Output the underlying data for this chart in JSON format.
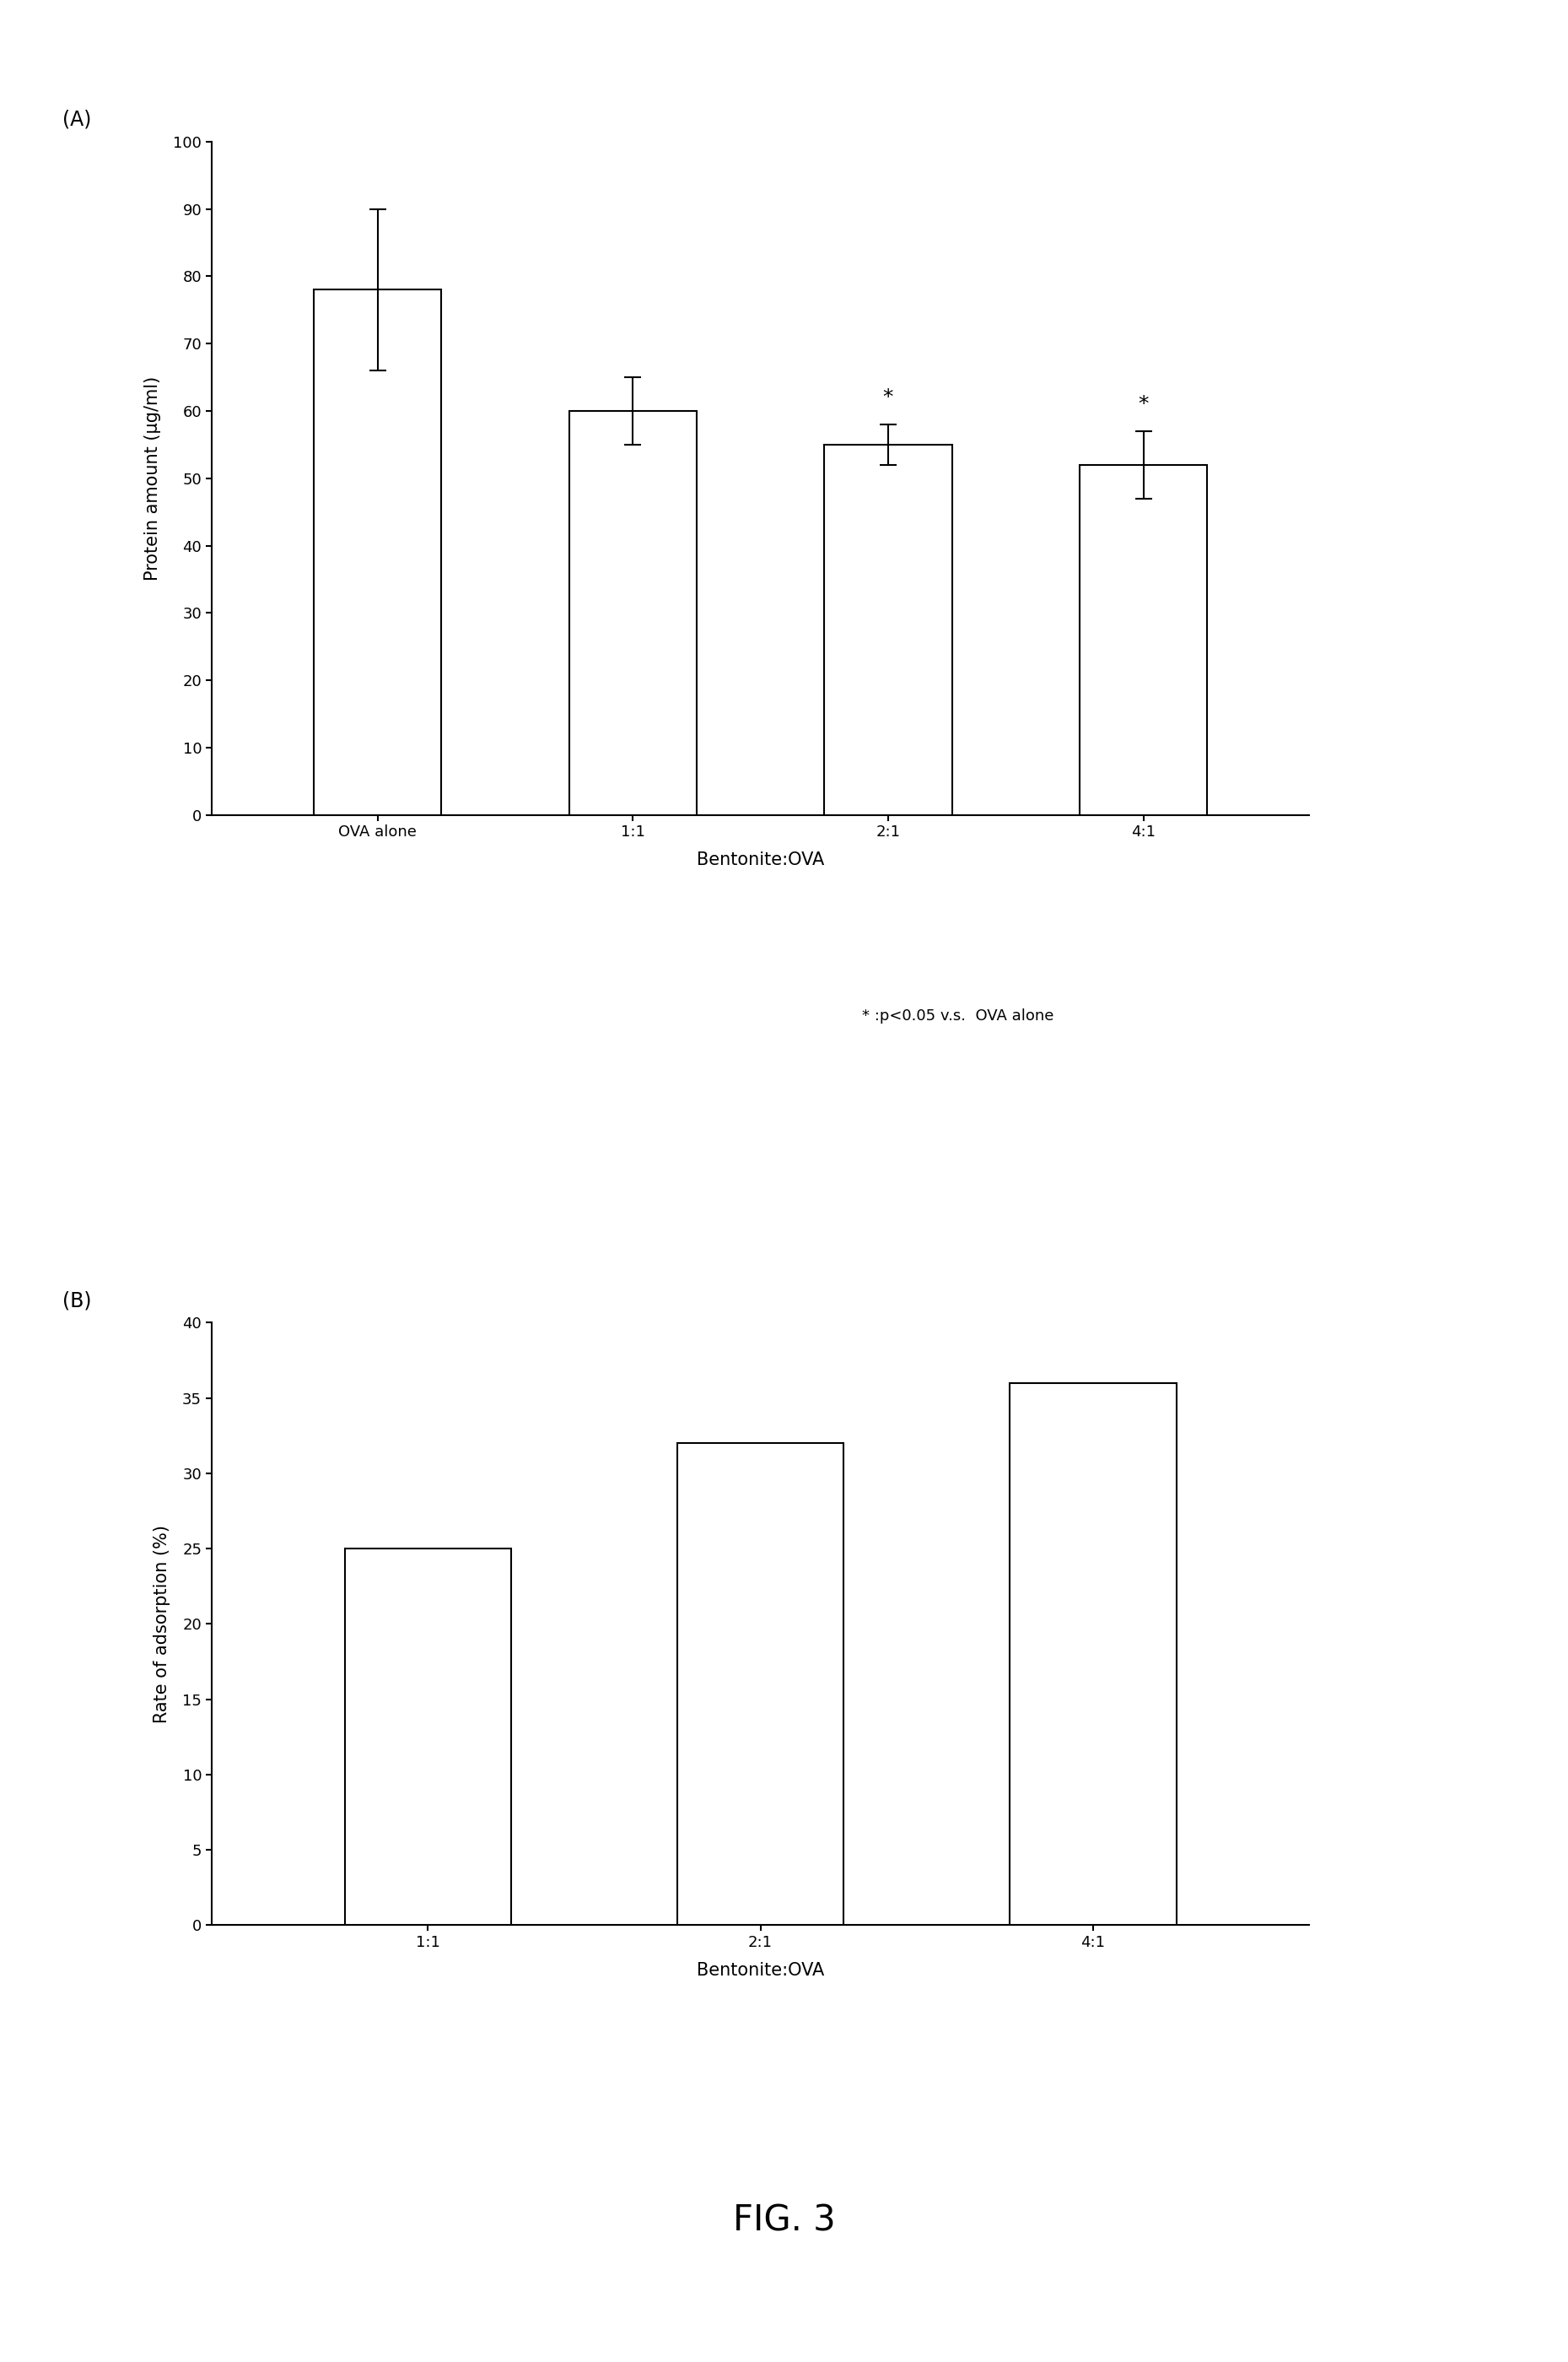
{
  "panel_A": {
    "categories": [
      "OVA alone",
      "1:1",
      "2:1",
      "4:1"
    ],
    "values": [
      78.0,
      60.0,
      55.0,
      52.0
    ],
    "errors": [
      12.0,
      5.0,
      3.0,
      5.0
    ],
    "ylabel": "Protein amount (μg/ml)",
    "xlabel": "Bentonite:OVA",
    "ylim": [
      0,
      100
    ],
    "yticks": [
      0,
      10,
      20,
      30,
      40,
      50,
      60,
      70,
      80,
      90,
      100
    ],
    "significant": [
      false,
      false,
      true,
      true
    ],
    "annotation": "* :p<0.05 v.s.  OVA alone",
    "label": "(A)"
  },
  "panel_B": {
    "categories": [
      "1:1",
      "2:1",
      "4:1"
    ],
    "values": [
      25.0,
      32.0,
      36.0
    ],
    "ylabel": "Rate of adsorption (%)",
    "xlabel": "Bentonite:OVA",
    "ylim": [
      0,
      40
    ],
    "yticks": [
      0,
      5,
      10,
      15,
      20,
      25,
      30,
      35,
      40
    ],
    "label": "(B)"
  },
  "fig_label": "FIG. 3",
  "bar_color": "white",
  "bar_edgecolor": "black",
  "bar_width": 0.5,
  "bar_linewidth": 1.5,
  "axis_linewidth": 1.5,
  "fontsize_label": 15,
  "fontsize_tick": 13,
  "fontsize_panel": 17,
  "fontsize_annot": 13,
  "fontsize_fig": 30,
  "fontsize_star": 18
}
